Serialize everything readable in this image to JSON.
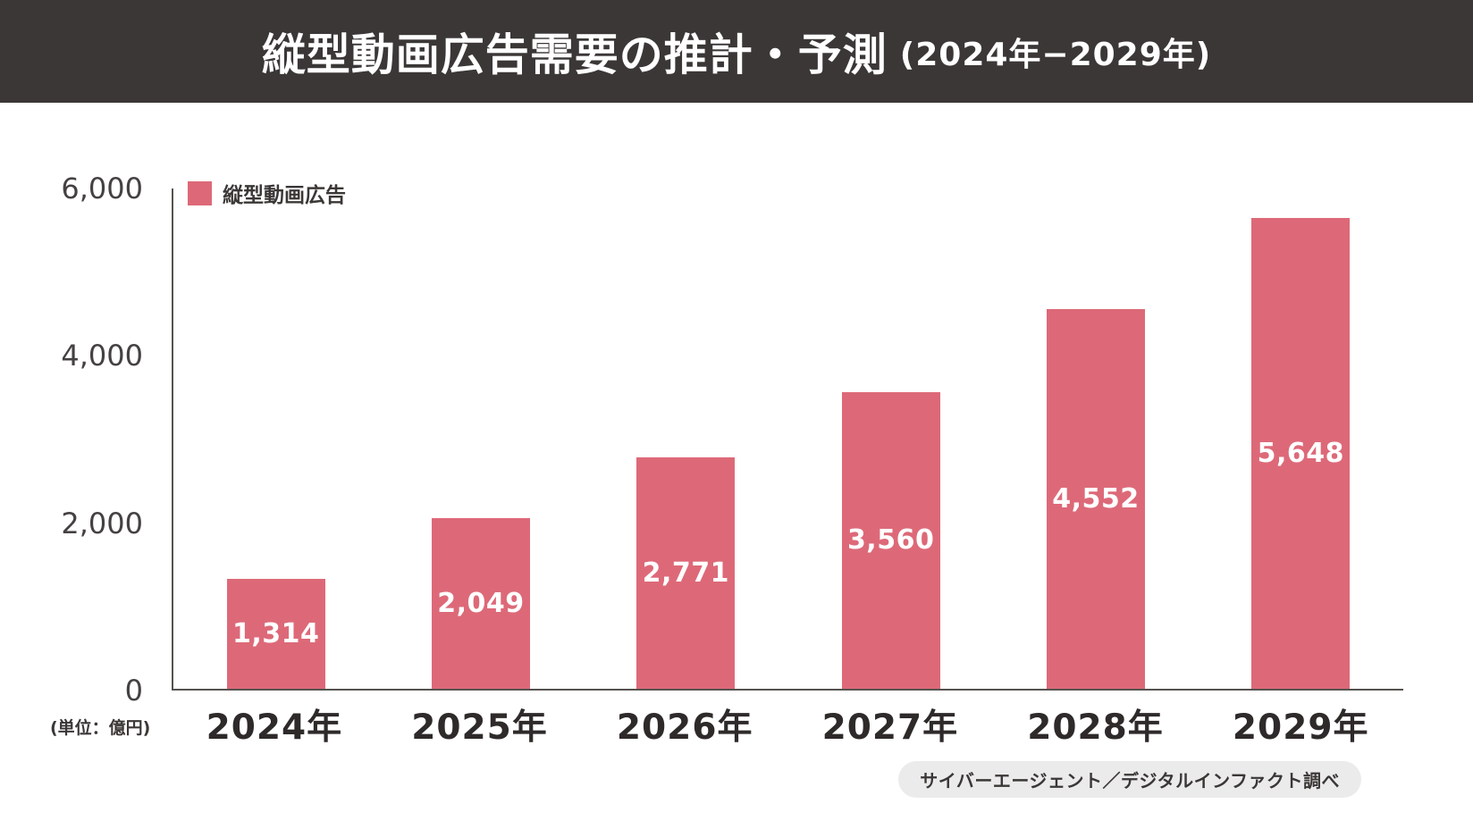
{
  "header": {
    "title_main": "縦型動画広告需要の推計・予測",
    "title_range": "(2024年−2029年)"
  },
  "legend": {
    "label": "縦型動画広告",
    "swatch_color": "#dd6978"
  },
  "unit_label": "(単位：億円)",
  "source": "サイバーエージェント／デジタルインファクト調べ",
  "chart_data": {
    "type": "bar",
    "title": "縦型動画広告需要の推計・予測 (2024年−2029年)",
    "categories": [
      "2024年",
      "2025年",
      "2026年",
      "2027年",
      "2028年",
      "2029年"
    ],
    "series": [
      {
        "name": "縦型動画広告",
        "values": [
          1314,
          2049,
          2771,
          3560,
          4552,
          5648
        ]
      }
    ],
    "value_labels": [
      "1,314",
      "2,049",
      "2,771",
      "3,560",
      "4,552",
      "5,648"
    ],
    "xlabel": "",
    "ylabel": "(単位：億円)",
    "ylim": [
      0,
      6000
    ],
    "yticks": [
      {
        "label": "6,000",
        "value": 6000
      },
      {
        "label": "4,000",
        "value": 4000
      },
      {
        "label": "2,000",
        "value": 2000
      },
      {
        "label": "0",
        "value": 0
      }
    ],
    "grid": false,
    "legend_position": "top-left",
    "bar_color": "#dd6978",
    "value_label_color": "#ffffff"
  }
}
